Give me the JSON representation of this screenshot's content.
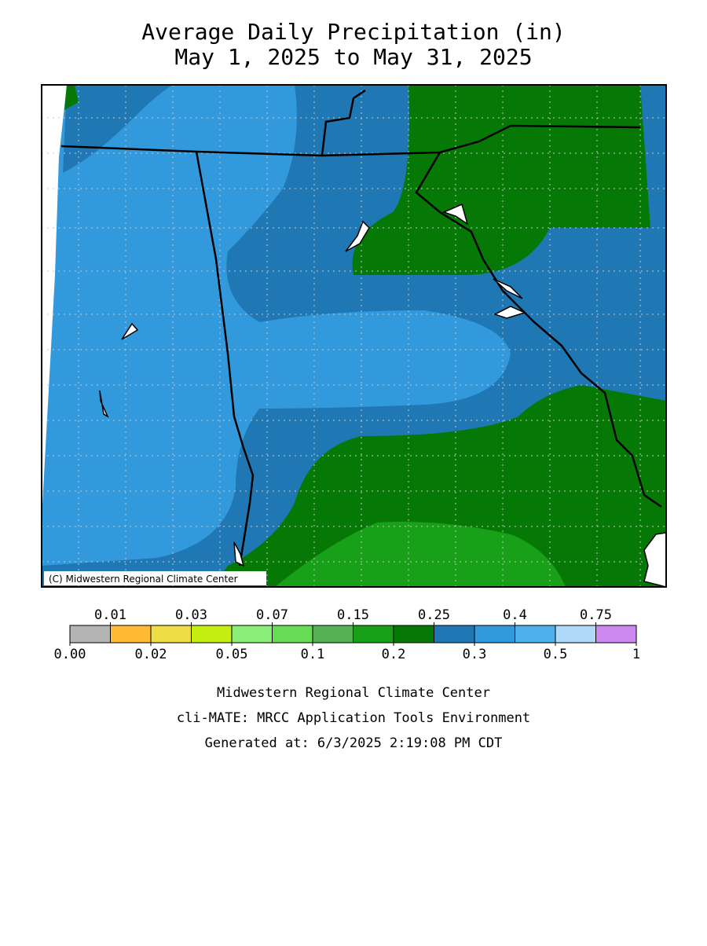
{
  "header": {
    "title": "Average Daily Precipitation (in)",
    "subtitle": "May 1, 2025 to May 31, 2025"
  },
  "map": {
    "credit": "(C) Midwestern Regional Climate Center"
  },
  "legend": {
    "colors": [
      "#b4b4b4",
      "#ffbb33",
      "#eedd44",
      "#c4ee11",
      "#88ee77",
      "#66dd55",
      "#55b355",
      "#19a019",
      "#067806",
      "#1f78b4",
      "#3399dd",
      "#4fb0ee",
      "#b0d8f8",
      "#cc88ee"
    ],
    "breaks": [
      {
        "value": 0,
        "label": "0.00"
      },
      0.01,
      0.02,
      0.03,
      0.05,
      0.07,
      0.1,
      0.15,
      0.2,
      0.25,
      0.3,
      0.4,
      0.5,
      0.75,
      1
    ]
  },
  "footer": {
    "lines": [
      "Midwestern Regional Climate Center",
      "cli-MATE: MRCC Application Tools Environment",
      "Generated at: 6/3/2025 2:19:08 PM CDT"
    ]
  }
}
